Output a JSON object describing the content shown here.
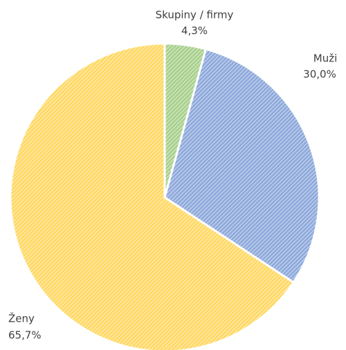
{
  "chart_data": {
    "type": "pie",
    "categories": [
      "Skupiny / firmy",
      "Muži",
      "Ženy"
    ],
    "values": [
      4.3,
      30.0,
      65.7
    ],
    "value_labels": [
      "4,3%",
      "30,0%",
      "65,7%"
    ],
    "colors": [
      "#a9d18e",
      "#8faadc",
      "#ffd966"
    ]
  }
}
